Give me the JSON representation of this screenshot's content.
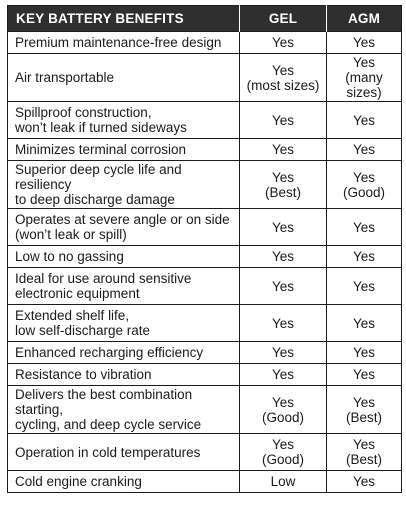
{
  "table": {
    "headers": {
      "feature": "KEY BATTERY BENEFITS",
      "gel": "GEL",
      "agm": "AGM"
    },
    "rows": [
      {
        "feature": [
          "Premium maintenance-free design"
        ],
        "gel": [
          "Yes"
        ],
        "agm": [
          "Yes"
        ]
      },
      {
        "feature": [
          "Air transportable"
        ],
        "gel": [
          "Yes",
          "(most sizes)"
        ],
        "agm": [
          "Yes",
          "(many sizes)"
        ]
      },
      {
        "feature": [
          "Spillproof construction,",
          "won’t leak if turned sideways"
        ],
        "gel": [
          "Yes"
        ],
        "agm": [
          "Yes"
        ]
      },
      {
        "feature": [
          "Minimizes terminal corrosion"
        ],
        "gel": [
          "Yes"
        ],
        "agm": [
          "Yes"
        ]
      },
      {
        "feature": [
          "Superior deep cycle life and resiliency",
          "to deep discharge damage"
        ],
        "gel": [
          "Yes",
          "(Best)"
        ],
        "agm": [
          "Yes",
          "(Good)"
        ]
      },
      {
        "feature": [
          "Operates at severe angle or on side",
          "(won’t leak or spill)"
        ],
        "gel": [
          "Yes"
        ],
        "agm": [
          "Yes"
        ]
      },
      {
        "feature": [
          "Low to no gassing"
        ],
        "gel": [
          "Yes"
        ],
        "agm": [
          "Yes"
        ]
      },
      {
        "feature": [
          "Ideal for use around sensitive",
          "electronic equipment"
        ],
        "gel": [
          "Yes"
        ],
        "agm": [
          "Yes"
        ]
      },
      {
        "feature": [
          "Extended shelf life,",
          "low self-discharge rate"
        ],
        "gel": [
          "Yes"
        ],
        "agm": [
          "Yes"
        ]
      },
      {
        "feature": [
          "Enhanced recharging efficiency"
        ],
        "gel": [
          "Yes"
        ],
        "agm": [
          "Yes"
        ]
      },
      {
        "feature": [
          "Resistance to vibration"
        ],
        "gel": [
          "Yes"
        ],
        "agm": [
          "Yes"
        ]
      },
      {
        "feature": [
          "Delivers the best combination starting,",
          "cycling, and deep cycle service"
        ],
        "gel": [
          "Yes",
          "(Good)"
        ],
        "agm": [
          "Yes",
          "(Best)"
        ]
      },
      {
        "feature": [
          "Operation in cold temperatures"
        ],
        "gel": [
          "Yes",
          "(Good)"
        ],
        "agm": [
          "Yes",
          "(Best)"
        ]
      },
      {
        "feature": [
          "Cold engine cranking"
        ],
        "gel": [
          "Low"
        ],
        "agm": [
          "Yes"
        ]
      }
    ]
  }
}
